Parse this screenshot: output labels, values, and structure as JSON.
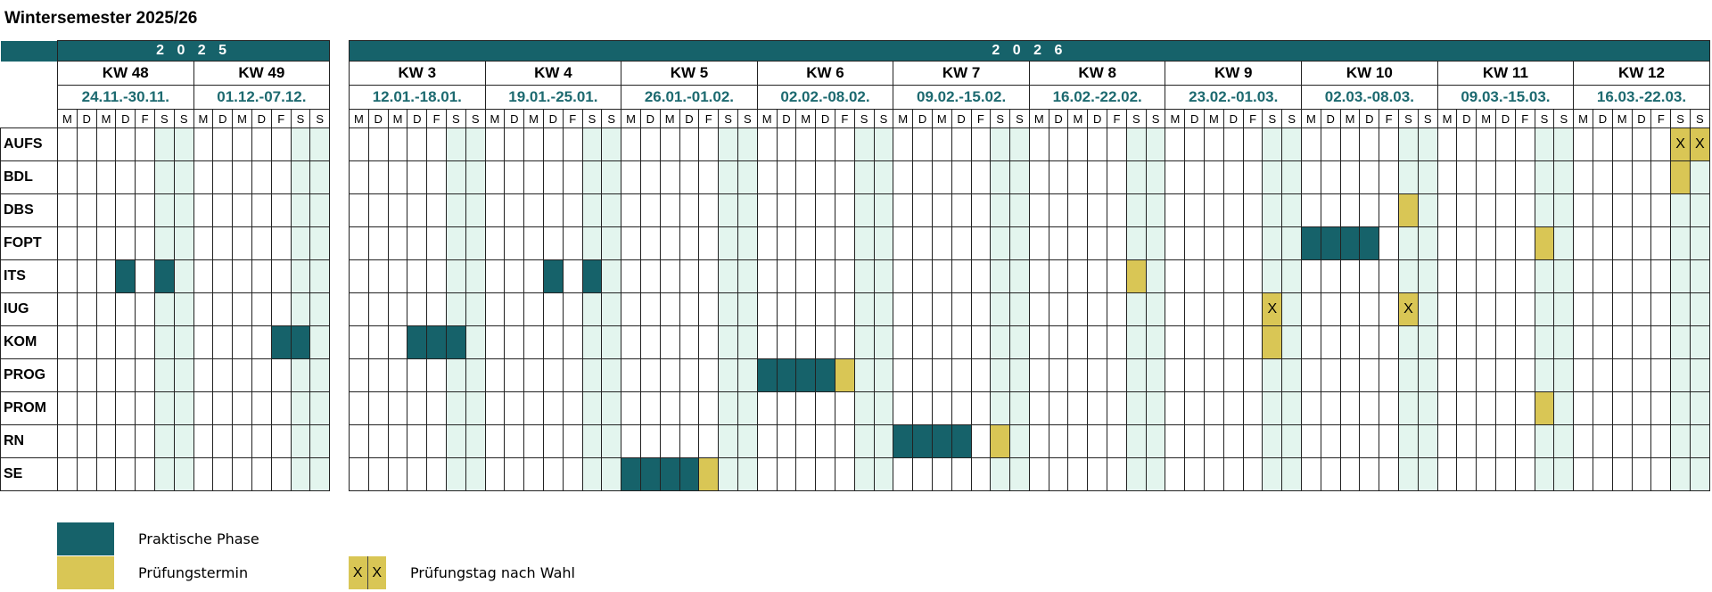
{
  "title": "Wintersemester 2025/26",
  "colors": {
    "praktisch": "#16626a",
    "pruefung": "#d9c655",
    "weekend": "#e3f5ee"
  },
  "day_letters": [
    "M",
    "D",
    "M",
    "D",
    "F",
    "S",
    "S"
  ],
  "subjects": [
    "AUFS",
    "BDL",
    "DBS",
    "FOPT",
    "ITS",
    "IUG",
    "KOM",
    "PROG",
    "PROM",
    "RN",
    "SE"
  ],
  "blocks": [
    {
      "year": "2 0 2 5",
      "weeks": [
        {
          "kw": "KW 48",
          "dates": "24.11.-30.11."
        },
        {
          "kw": "KW 49",
          "dates": "01.12.-07.12."
        }
      ]
    },
    {
      "year": "2 0 2 6",
      "weeks": [
        {
          "kw": "KW 3",
          "dates": "12.01.-18.01."
        },
        {
          "kw": "KW 4",
          "dates": "19.01.-25.01."
        },
        {
          "kw": "KW 5",
          "dates": "26.01.-01.02."
        },
        {
          "kw": "KW 6",
          "dates": "02.02.-08.02."
        },
        {
          "kw": "KW 7",
          "dates": "09.02.-15.02."
        },
        {
          "kw": "KW 8",
          "dates": "16.02.-22.02."
        },
        {
          "kw": "KW 9",
          "dates": "23.02.-01.03."
        },
        {
          "kw": "KW 10",
          "dates": "02.03.-08.03."
        },
        {
          "kw": "KW 11",
          "dates": "09.03.-15.03."
        },
        {
          "kw": "KW 12",
          "dates": "16.03.-22.03."
        }
      ]
    }
  ],
  "schedule": {
    "AUFS": [
      {
        "kw": "KW 12",
        "day": 5,
        "t": "e",
        "text": "X"
      },
      {
        "kw": "KW 12",
        "day": 6,
        "t": "e",
        "text": "X"
      }
    ],
    "BDL": [
      {
        "kw": "KW 12",
        "day": 5,
        "t": "e"
      }
    ],
    "DBS": [
      {
        "kw": "KW 10",
        "day": 5,
        "t": "e"
      }
    ],
    "FOPT": [
      {
        "kw": "KW 10",
        "day": 0,
        "t": "p"
      },
      {
        "kw": "KW 10",
        "day": 1,
        "t": "p"
      },
      {
        "kw": "KW 10",
        "day": 2,
        "t": "p"
      },
      {
        "kw": "KW 10",
        "day": 3,
        "t": "p"
      },
      {
        "kw": "KW 11",
        "day": 5,
        "t": "e"
      }
    ],
    "ITS": [
      {
        "kw": "KW 48",
        "day": 3,
        "t": "p"
      },
      {
        "kw": "KW 48",
        "day": 5,
        "t": "p"
      },
      {
        "kw": "KW 4",
        "day": 3,
        "t": "p"
      },
      {
        "kw": "KW 4",
        "day": 5,
        "t": "p"
      },
      {
        "kw": "KW 8",
        "day": 5,
        "t": "e"
      }
    ],
    "IUG": [
      {
        "kw": "KW 9",
        "day": 5,
        "t": "e",
        "text": "X"
      },
      {
        "kw": "KW 10",
        "day": 5,
        "t": "e",
        "text": "X"
      }
    ],
    "KOM": [
      {
        "kw": "KW 49",
        "day": 4,
        "t": "p"
      },
      {
        "kw": "KW 49",
        "day": 5,
        "t": "p"
      },
      {
        "kw": "KW 3",
        "day": 3,
        "t": "p"
      },
      {
        "kw": "KW 3",
        "day": 4,
        "t": "p"
      },
      {
        "kw": "KW 3",
        "day": 5,
        "t": "p"
      },
      {
        "kw": "KW 9",
        "day": 5,
        "t": "e"
      }
    ],
    "PROG": [
      {
        "kw": "KW 6",
        "day": 0,
        "t": "p"
      },
      {
        "kw": "KW 6",
        "day": 1,
        "t": "p"
      },
      {
        "kw": "KW 6",
        "day": 2,
        "t": "p"
      },
      {
        "kw": "KW 6",
        "day": 3,
        "t": "p"
      },
      {
        "kw": "KW 6",
        "day": 4,
        "t": "e"
      }
    ],
    "PROM": [
      {
        "kw": "KW 11",
        "day": 5,
        "t": "e"
      }
    ],
    "RN": [
      {
        "kw": "KW 7",
        "day": 0,
        "t": "p"
      },
      {
        "kw": "KW 7",
        "day": 1,
        "t": "p"
      },
      {
        "kw": "KW 7",
        "day": 2,
        "t": "p"
      },
      {
        "kw": "KW 7",
        "day": 3,
        "t": "p"
      },
      {
        "kw": "KW 7",
        "day": 5,
        "t": "e"
      }
    ],
    "SE": [
      {
        "kw": "KW 5",
        "day": 0,
        "t": "p"
      },
      {
        "kw": "KW 5",
        "day": 1,
        "t": "p"
      },
      {
        "kw": "KW 5",
        "day": 2,
        "t": "p"
      },
      {
        "kw": "KW 5",
        "day": 3,
        "t": "p"
      },
      {
        "kw": "KW 5",
        "day": 4,
        "t": "e"
      }
    ]
  },
  "legend": {
    "praktisch": "Praktische Phase",
    "pruefung": "Prüfungstermin",
    "wahl": "Prüfungstag nach Wahl",
    "wahl_mark": "X"
  }
}
